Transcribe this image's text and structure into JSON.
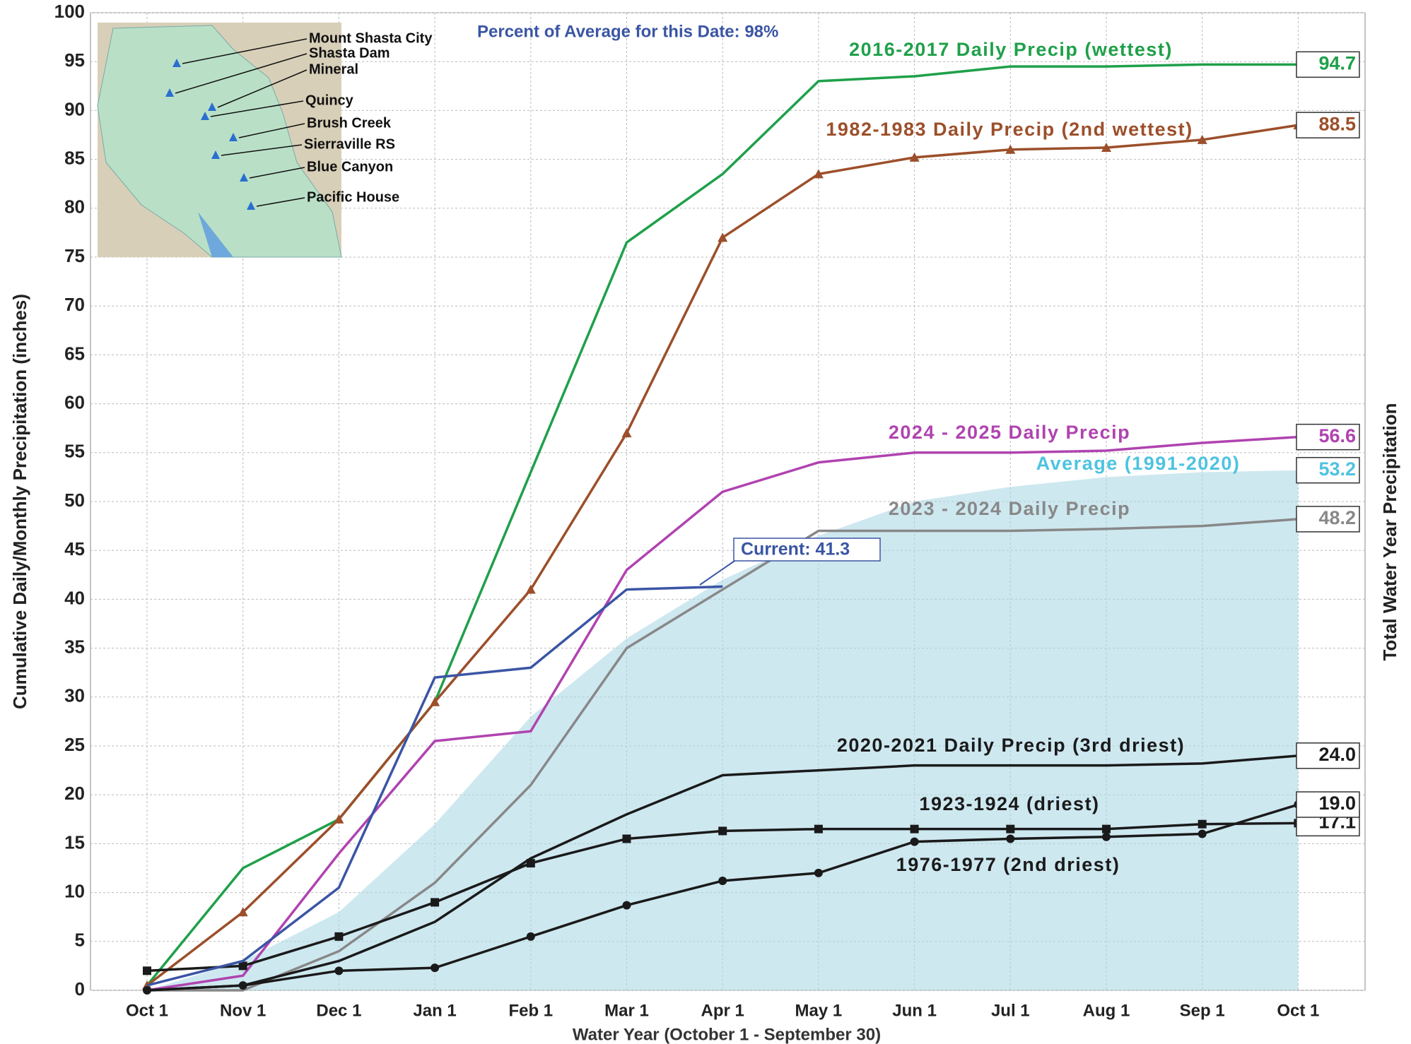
{
  "chart_data": {
    "type": "line",
    "subtitle": "Percent of Average for this Date: 98%",
    "x_label": "Water Year (October 1 - September 30)",
    "y_label": "Cumulative Daily/Monthly Precipitation (inches)",
    "y2_label": "Total Water Year Precipitation",
    "categories": [
      "Oct 1",
      "Nov 1",
      "Dec 1",
      "Jan 1",
      "Feb 1",
      "Mar 1",
      "Apr 1",
      "May 1",
      "Jun 1",
      "Jul 1",
      "Aug 1",
      "Sep 1",
      "Oct 1"
    ],
    "ylim": [
      0,
      100
    ],
    "yticks": [
      0,
      5,
      10,
      15,
      20,
      25,
      30,
      35,
      40,
      45,
      50,
      55,
      60,
      65,
      70,
      75,
      80,
      85,
      90,
      95,
      100
    ],
    "grid": true,
    "series": [
      {
        "name": "Average (1991-2020)",
        "color": "#add8e6",
        "style": "area",
        "values": [
          0,
          3,
          8,
          17,
          28,
          36,
          42,
          46.5,
          50,
          51.5,
          52.5,
          53,
          53.2
        ],
        "end_label": "53.2",
        "label_color": "#4ec3e0"
      },
      {
        "name": "2016-2017 Daily Precip (wettest)",
        "color": "#1fa04a",
        "values": [
          0.5,
          12.5,
          17.5,
          29.5,
          53,
          76.5,
          83.5,
          93,
          93.5,
          94.5,
          94.5,
          94.7,
          94.7
        ],
        "end_label": "94.7"
      },
      {
        "name": "1982-1983 Daily Precip (2nd wettest)",
        "color": "#9c4f2a",
        "marker": "triangle",
        "values": [
          0.5,
          8,
          17.5,
          29.5,
          41,
          57,
          77,
          83.5,
          85.2,
          86,
          86.2,
          87,
          88.5
        ],
        "end_label": "88.5"
      },
      {
        "name": "2024 - 2025 Daily Precip",
        "color": "#b043b0",
        "values": [
          0,
          1.5,
          14,
          25.5,
          26.5,
          43,
          51,
          54,
          55,
          55,
          55.2,
          56,
          56.6
        ],
        "end_label": "56.6"
      },
      {
        "name": "2023 - 2024 Daily Precip",
        "color": "#888888",
        "values": [
          0,
          0,
          4,
          11,
          21,
          35,
          41,
          47,
          47,
          47,
          47.2,
          47.5,
          48.2
        ],
        "end_label": "48.2"
      },
      {
        "name": "2020-2021 Daily Precip (3rd driest)",
        "color": "#1a1a1a",
        "values": [
          0,
          0.5,
          3,
          7,
          13.5,
          18,
          22,
          22.5,
          23,
          23,
          23,
          23.2,
          24
        ],
        "end_label": "24.0"
      },
      {
        "name": "1923-1924 (driest)",
        "color": "#1a1a1a",
        "marker": "square",
        "values": [
          2,
          2.5,
          5.5,
          9,
          13,
          15.5,
          16.3,
          16.5,
          16.5,
          16.5,
          16.5,
          17,
          17.1
        ],
        "end_label": "17.1"
      },
      {
        "name": "1976-1977 (2nd driest)",
        "color": "#1a1a1a",
        "marker": "circle",
        "values": [
          0,
          0.5,
          2,
          2.3,
          5.5,
          8.7,
          11.2,
          12,
          15.2,
          15.5,
          15.7,
          16,
          19
        ],
        "end_label": "19.0"
      },
      {
        "name": "Current",
        "color": "#3a55a4",
        "values": [
          0.5,
          3,
          10.5,
          32,
          33,
          41,
          41.3,
          null,
          null,
          null,
          null,
          null,
          null
        ]
      }
    ],
    "annotation": "Current: 41.3"
  },
  "inset": {
    "stations": [
      "Mount Shasta City",
      "Shasta Dam",
      "Mineral",
      "Quincy",
      "Brush Creek",
      "Sierraville RS",
      "Blue Canyon",
      "Pacific House"
    ]
  }
}
